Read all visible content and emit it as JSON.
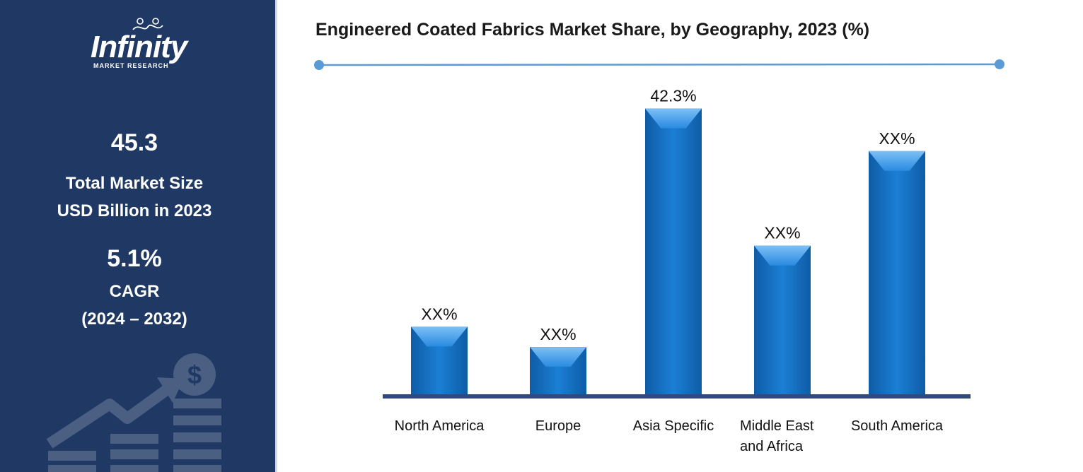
{
  "sidebar": {
    "logo_text": "Infinity",
    "logo_subtext": "MARKET RESEARCH",
    "market_size_value": "45.3",
    "market_size_label_1": "Total Market Size",
    "market_size_label_2": "USD Billion in 2023",
    "cagr_value": "5.1%",
    "cagr_label": "CAGR",
    "cagr_period": "(2024 – 2032)",
    "icons": [
      "dollar-coin-icon",
      "growth-arrow-icon",
      "stacked-bars-icon"
    ]
  },
  "chart_data": {
    "type": "bar",
    "title": "Engineered Coated Fabrics Market Share, by Geography, 2023 (%)",
    "categories": [
      "North America",
      "Europe",
      "Asia Specific",
      "Middle East and Africa",
      "South America"
    ],
    "category_lines": [
      [
        "North America"
      ],
      [
        "Europe"
      ],
      [
        "Asia Specific"
      ],
      [
        "Middle East",
        "and Africa"
      ],
      [
        "South America"
      ]
    ],
    "values": [
      10.0,
      7.0,
      42.3,
      22.0,
      36.0
    ],
    "data_labels": [
      "XX%",
      "XX%",
      "42.3%",
      "XX%",
      "XX%"
    ],
    "ylim": [
      0,
      50
    ],
    "grid": false,
    "legend": "none",
    "colors": {
      "bar": "#1670c0",
      "bar_dark": "#0d4f8f",
      "bar_light": "#5aaaf0",
      "axis": "#2f4b7c",
      "rule": "#5b9bd5",
      "sidebar": "#1f3864"
    }
  }
}
